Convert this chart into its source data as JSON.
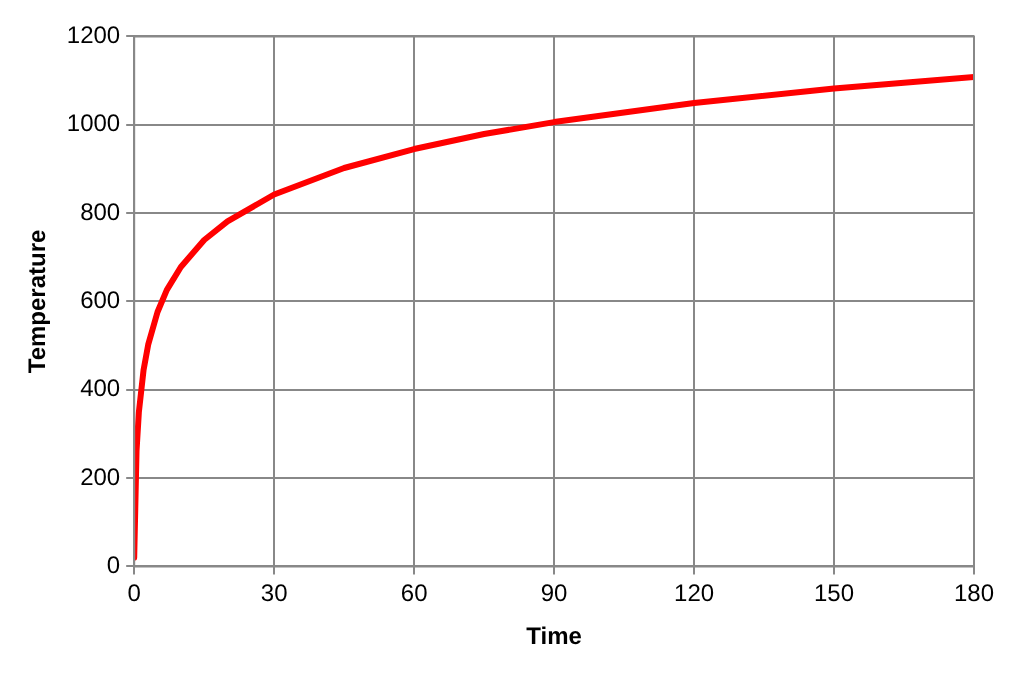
{
  "chart_data": {
    "type": "line",
    "xlabel": "Time",
    "ylabel": "Temperature",
    "x": [
      0,
      0.5,
      1,
      2,
      3,
      5,
      7,
      10,
      15,
      20,
      30,
      45,
      60,
      75,
      90,
      120,
      150,
      180
    ],
    "series": [
      {
        "color": "#ff0000",
        "values": [
          20,
          261,
          349,
          444,
          502,
          576,
          626,
          678,
          739,
          781,
          842,
          902,
          945,
          979,
          1006,
          1049,
          1082,
          1108
        ]
      }
    ],
    "xlim": [
      0,
      180
    ],
    "xticks": [
      0,
      30,
      60,
      90,
      120,
      150,
      180
    ],
    "ylim": [
      0,
      1200
    ],
    "yticks": [
      0,
      200,
      400,
      600,
      800,
      1000,
      1200
    ],
    "grid": true,
    "legend": false,
    "marker": "none",
    "line_style": "solid"
  }
}
